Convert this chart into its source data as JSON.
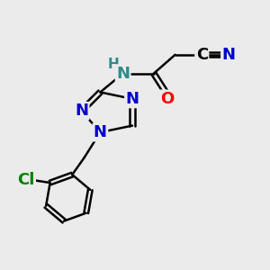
{
  "bg_color": "#ebebeb",
  "bond_color": "#000000",
  "bond_width": 1.8,
  "atoms": {
    "N_blue": "#0000cc",
    "N_teal": "#2e8b8b",
    "O_red": "#ff0000",
    "Cl_green": "#008000",
    "C_black": "#000000"
  },
  "xlim": [
    0,
    10
  ],
  "ylim": [
    0,
    10
  ],
  "font_size": 13
}
